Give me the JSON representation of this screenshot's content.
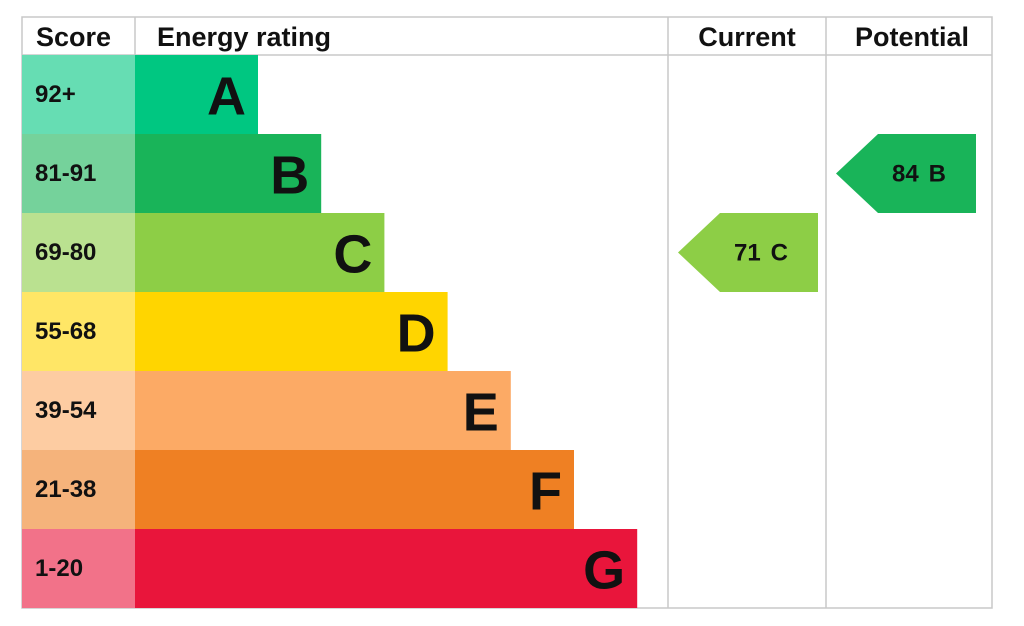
{
  "header": {
    "score": "Score",
    "rating": "Energy rating",
    "current": "Current",
    "potential": "Potential"
  },
  "bands": [
    {
      "score": "92+",
      "letter": "A",
      "color": "#00c781"
    },
    {
      "score": "81-91",
      "letter": "B",
      "color": "#19b459"
    },
    {
      "score": "69-80",
      "letter": "C",
      "color": "#8dce46"
    },
    {
      "score": "55-68",
      "letter": "D",
      "color": "#ffd500"
    },
    {
      "score": "39-54",
      "letter": "E",
      "color": "#fcaa65"
    },
    {
      "score": "21-38",
      "letter": "F",
      "color": "#ef8023"
    },
    {
      "score": "1-20",
      "letter": "G",
      "color": "#e9153b"
    }
  ],
  "current": {
    "value": 71,
    "letter": "C"
  },
  "potential": {
    "value": 84,
    "letter": "B"
  }
}
